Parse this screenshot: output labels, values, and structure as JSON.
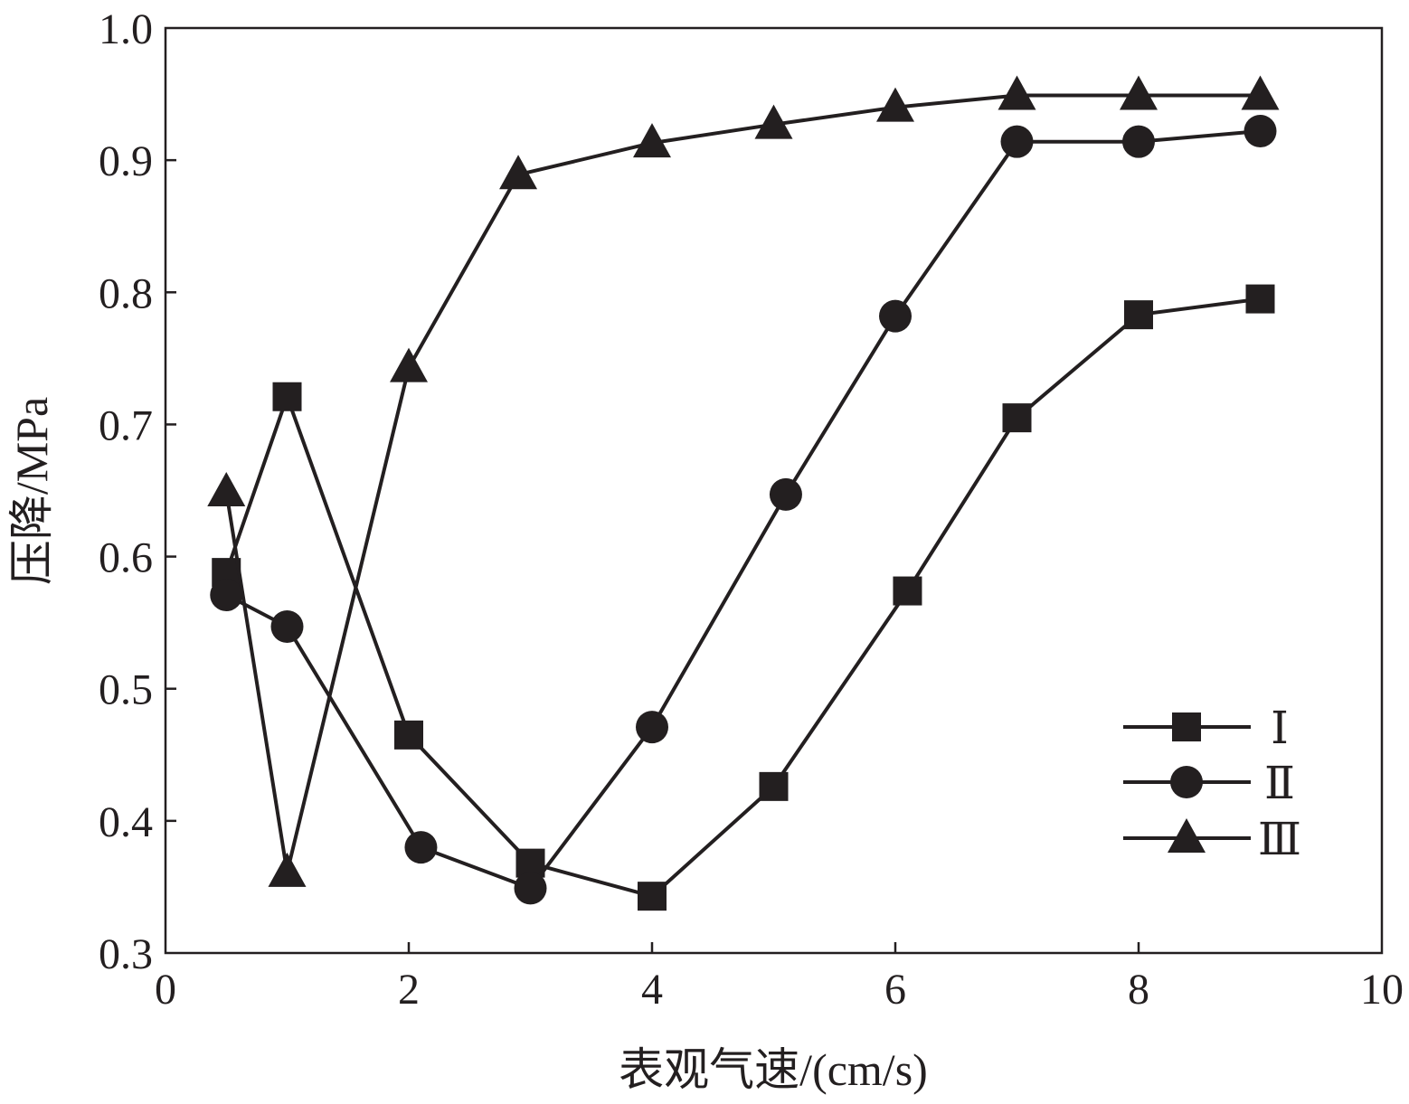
{
  "chart_data": {
    "type": "line",
    "title": "",
    "xlabel": "表观气速/(cm/s)",
    "ylabel": "压降/MPa",
    "xlim": [
      0,
      10
    ],
    "ylim": [
      0.3,
      1.0
    ],
    "xticks": [
      0,
      2,
      4,
      6,
      8,
      10
    ],
    "xtick_labels": [
      "0",
      "2",
      "4",
      "6",
      "8",
      "10"
    ],
    "yticks": [
      0.3,
      0.4,
      0.5,
      0.6,
      0.7,
      0.8,
      0.9,
      1.0
    ],
    "ytick_labels": [
      "0.3",
      "0.4",
      "0.5",
      "0.6",
      "0.7",
      "0.8",
      "0.9",
      "1.0"
    ],
    "grid": false,
    "legend_position": "lower-right",
    "series": [
      {
        "name": "Ⅰ",
        "marker": "square",
        "x": [
          0.5,
          1.0,
          2.0,
          3.0,
          4.0,
          5.0,
          6.1,
          7.0,
          8.0,
          9.0
        ],
        "y": [
          0.588,
          0.721,
          0.465,
          0.368,
          0.343,
          0.426,
          0.574,
          0.705,
          0.783,
          0.795
        ]
      },
      {
        "name": "Ⅱ",
        "marker": "circle",
        "x": [
          0.5,
          1.0,
          2.1,
          3.0,
          4.0,
          5.1,
          6.0,
          7.0,
          8.0,
          9.0
        ],
        "y": [
          0.571,
          0.547,
          0.38,
          0.349,
          0.471,
          0.647,
          0.782,
          0.914,
          0.914,
          0.922
        ]
      },
      {
        "name": "Ⅲ",
        "marker": "triangle",
        "x": [
          0.5,
          1.0,
          2.0,
          2.9,
          4.0,
          5.0,
          6.0,
          7.0,
          8.0,
          9.0
        ],
        "y": [
          0.649,
          0.361,
          0.743,
          0.889,
          0.913,
          0.927,
          0.94,
          0.949,
          0.949,
          0.949
        ]
      }
    ]
  }
}
